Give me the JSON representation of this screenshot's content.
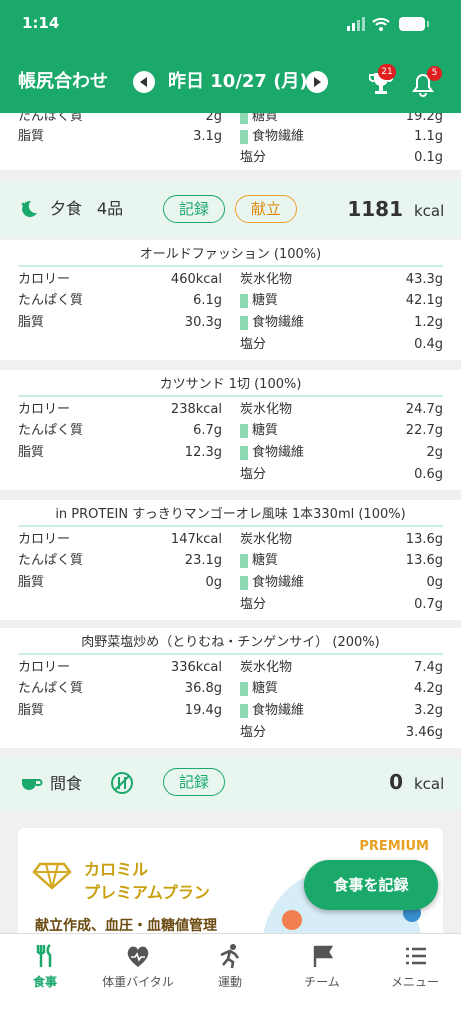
{
  "status": {
    "time": "1:14"
  },
  "header": {
    "title": "帳尻合わせ",
    "date": "昨日 10/27 (月)",
    "trophy_badge": "21",
    "bell_badge": "5"
  },
  "labels": {
    "calorie": "カロリー",
    "protein": "たんぱく質",
    "fat": "脂質",
    "carbs": "炭水化物",
    "sugar": "糖質",
    "fiber": "食物繊維",
    "salt": "塩分"
  },
  "previous_item": {
    "protein": "2g",
    "fat": "3.1g",
    "sugar": "19.2g",
    "fiber": "1.1g",
    "salt": "0.1g"
  },
  "dinner": {
    "label": "夕食",
    "count": "4品",
    "record_button": "記録",
    "menu_button": "献立",
    "total": "1181",
    "unit": "kcal"
  },
  "foods": [
    {
      "name": "オールドファッション (100%)",
      "calorie": "460kcal",
      "protein": "6.1g",
      "fat": "30.3g",
      "carbs": "43.3g",
      "sugar": "42.1g",
      "fiber": "1.2g",
      "salt": "0.4g"
    },
    {
      "name": "カツサンド 1切 (100%)",
      "calorie": "238kcal",
      "protein": "6.7g",
      "fat": "12.3g",
      "carbs": "24.7g",
      "sugar": "22.7g",
      "fiber": "2g",
      "salt": "0.6g"
    },
    {
      "name": "in PROTEIN すっきりマンゴーオレ風味 1本330ml (100%)",
      "calorie": "147kcal",
      "protein": "23.1g",
      "fat": "0g",
      "carbs": "13.6g",
      "sugar": "13.6g",
      "fiber": "0g",
      "salt": "0.7g"
    },
    {
      "name": "肉野菜塩炒め（とりむね・チンゲンサイ） (200%)",
      "calorie": "336kcal",
      "protein": "36.8g",
      "fat": "19.4g",
      "carbs": "7.4g",
      "sugar": "4.2g",
      "fiber": "3.2g",
      "salt": "3.46g"
    }
  ],
  "snack": {
    "label": "間食",
    "record_button": "記録",
    "total": "0",
    "unit": "kcal"
  },
  "promo": {
    "badge": "PREMIUM",
    "brand": "カロミル",
    "plan": "プレミアムプラン",
    "features": "献立作成、血圧・血糖値管理"
  },
  "fab": "食事を記録",
  "tabs": [
    "食事",
    "体重バイタル",
    "運動",
    "チーム",
    "メニュー"
  ]
}
